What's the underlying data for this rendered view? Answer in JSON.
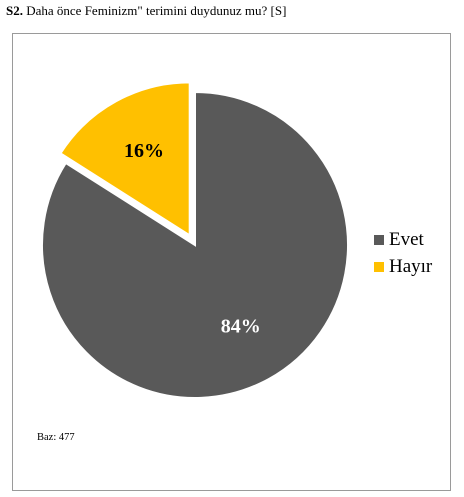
{
  "question": {
    "number": "S2.",
    "text": "Daha önce Feminizm\" terimini duydunuz mu? [S]"
  },
  "chart_data": {
    "type": "pie",
    "categories": [
      "Evet",
      "Hayır"
    ],
    "values": [
      84,
      16
    ],
    "data_labels": [
      "84%",
      "16%"
    ],
    "colors": [
      "#595959",
      "#ffc000"
    ],
    "label_colors": [
      "#ffffff",
      "#000000"
    ],
    "legend_position": "right",
    "exploded_slice": "Hayır",
    "note": "Baz: 477"
  }
}
